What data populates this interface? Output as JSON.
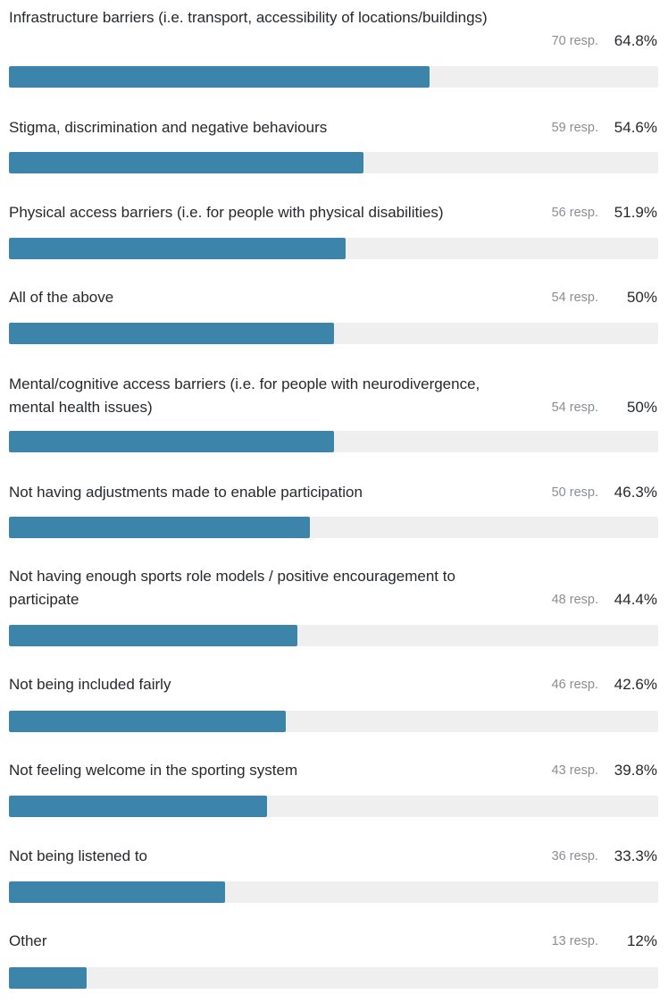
{
  "chart_data": {
    "type": "bar",
    "orientation": "horizontal",
    "xlim": [
      0,
      100
    ],
    "bar_color": "#3d84ab",
    "track_color": "#efefef",
    "items": [
      {
        "label": "Infrastructure barriers (i.e. transport, accessibility of locations/buildings)",
        "responses": "70 resp.",
        "percent_label": "64.8%",
        "value": 64.8
      },
      {
        "label": "Stigma, discrimination and negative behaviours",
        "responses": "59 resp.",
        "percent_label": "54.6%",
        "value": 54.6
      },
      {
        "label": "Physical access barriers (i.e. for people with physical disabilities)",
        "responses": "56 resp.",
        "percent_label": "51.9%",
        "value": 51.9
      },
      {
        "label": "All of the above",
        "responses": "54 resp.",
        "percent_label": "50%",
        "value": 50
      },
      {
        "label": "Mental/cognitive access barriers (i.e. for people with neurodivergence, mental health issues)",
        "responses": "54 resp.",
        "percent_label": "50%",
        "value": 50
      },
      {
        "label": "Not having adjustments made to enable participation",
        "responses": "50 resp.",
        "percent_label": "46.3%",
        "value": 46.3
      },
      {
        "label": "Not having enough sports role models / positive encouragement to participate",
        "responses": "48 resp.",
        "percent_label": "44.4%",
        "value": 44.4
      },
      {
        "label": "Not being included fairly",
        "responses": "46 resp.",
        "percent_label": "42.6%",
        "value": 42.6
      },
      {
        "label": "Not feeling welcome in the sporting system",
        "responses": "43 resp.",
        "percent_label": "39.8%",
        "value": 39.8
      },
      {
        "label": "Not being listened to",
        "responses": "36 resp.",
        "percent_label": "33.3%",
        "value": 33.3
      },
      {
        "label": "Other",
        "responses": "13 resp.",
        "percent_label": "12%",
        "value": 12
      }
    ]
  }
}
